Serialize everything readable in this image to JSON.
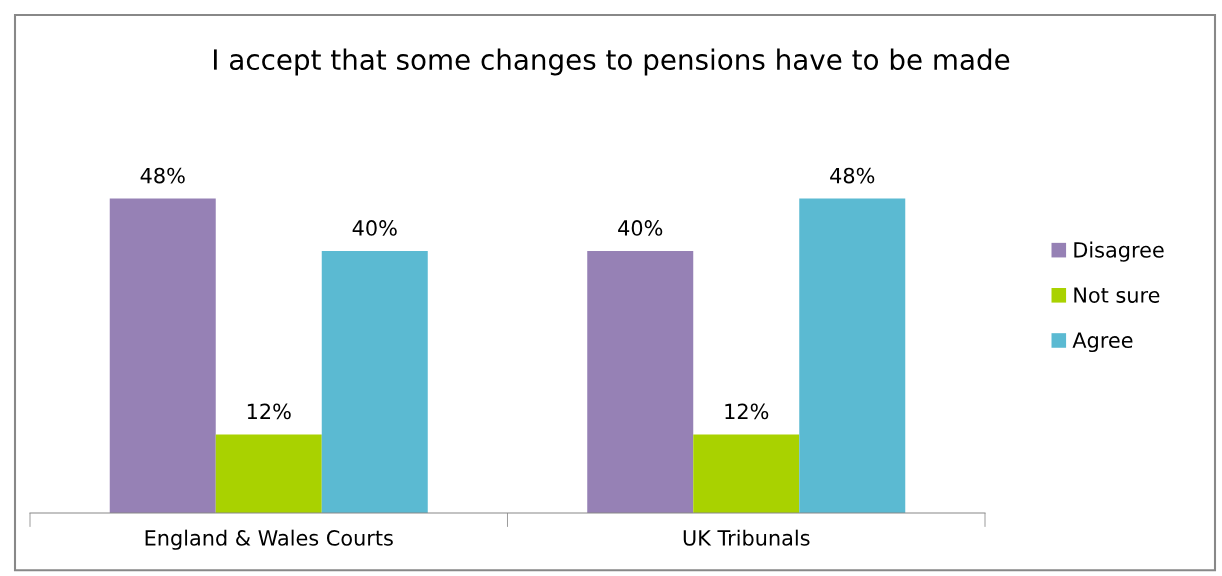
{
  "chart_data": {
    "type": "bar",
    "title": "I accept that some changes to pensions have to be made",
    "categories": [
      "England & Wales Courts",
      "UK Tribunals"
    ],
    "series": [
      {
        "name": "Disagree",
        "color": "#9681b5",
        "values": [
          48,
          40
        ],
        "value_labels": [
          "48%",
          "40%"
        ]
      },
      {
        "name": "Not sure",
        "color": "#a9d200",
        "values": [
          12,
          12
        ],
        "value_labels": [
          "12%",
          "12%"
        ]
      },
      {
        "name": "Agree",
        "color": "#5bbad2",
        "values": [
          40,
          48
        ],
        "value_labels": [
          "40%",
          "48%"
        ]
      }
    ],
    "legend": "right",
    "grid": false
  }
}
